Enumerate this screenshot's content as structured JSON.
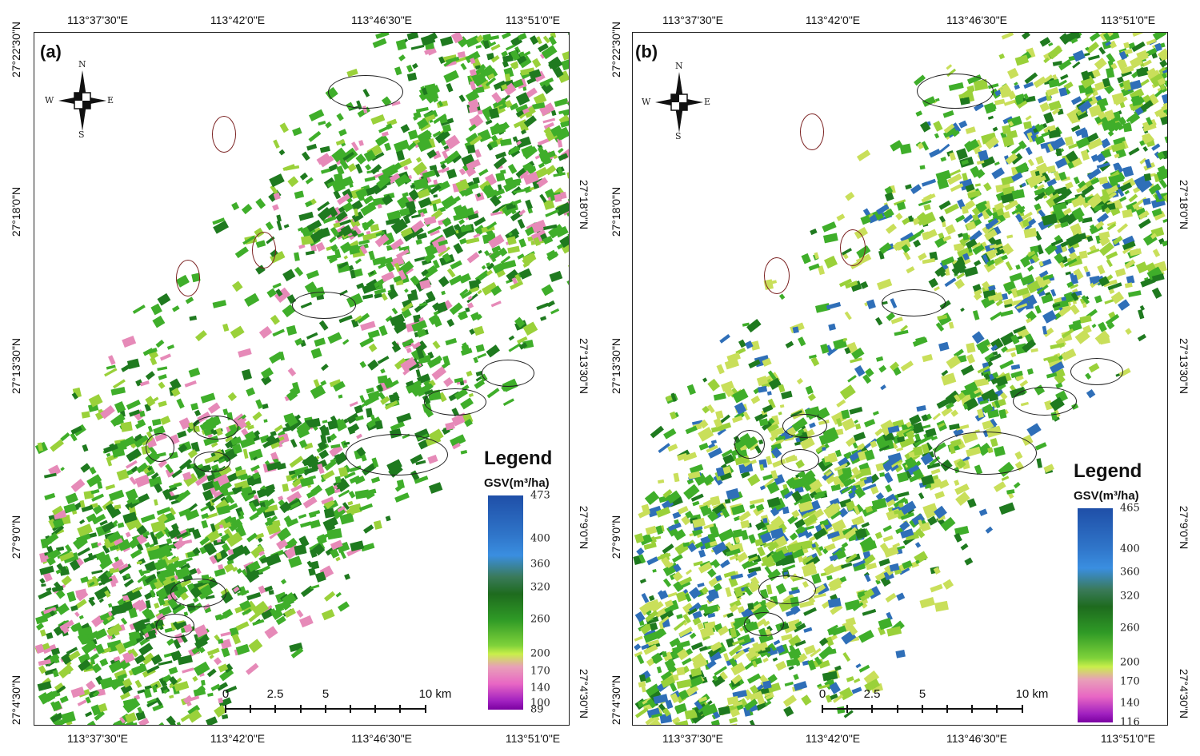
{
  "panels": [
    {
      "id": "a",
      "label": "(a)",
      "legend": {
        "title": "Legend",
        "unit": "GSV(m³/ha)",
        "ticks": [
          "473",
          "400",
          "360",
          "320",
          "260",
          "200",
          "170",
          "140",
          "100",
          "89"
        ]
      },
      "scalebar": {
        "labels": [
          "0",
          "2.5",
          "5",
          "10 km"
        ]
      },
      "compass": {
        "n": "N",
        "s": "S",
        "e": "E",
        "w": "W"
      }
    },
    {
      "id": "b",
      "label": "(b)",
      "legend": {
        "title": "Legend",
        "unit": "GSV(m³/ha)",
        "ticks": [
          "465",
          "400",
          "360",
          "320",
          "260",
          "200",
          "170",
          "140",
          "116"
        ]
      },
      "scalebar": {
        "labels": [
          "0",
          "2.5",
          "5",
          "10 km"
        ]
      },
      "compass": {
        "n": "N",
        "s": "S",
        "e": "E",
        "w": "W"
      }
    }
  ],
  "axes": {
    "top_lon": [
      "113°37'30\"E",
      "113°42'0\"E",
      "113°46'30\"E",
      "113°51'0\"E"
    ],
    "bottom_lon": [
      "113°37'30\"E",
      "113°42'0\"E",
      "113°46'30\"E",
      "113°51'0\"E"
    ],
    "left_lat": [
      "27°22'30\"N",
      "27°18'0\"N",
      "27°13'30\"N",
      "27°9'0\"N",
      "27°4'30\"N"
    ],
    "right_lat": [
      "27°18'0\"N",
      "27°13'30\"N",
      "27°9'0\"N",
      "27°4'30\"N"
    ]
  },
  "colors": {
    "green_dark": "#1f7a1f",
    "green_mid": "#3fae2a",
    "green_light": "#9ad13a",
    "yellow_green": "#c9df5a",
    "pink": "#e68ab8",
    "blue": "#2f6fb8",
    "frame": "#222222"
  }
}
